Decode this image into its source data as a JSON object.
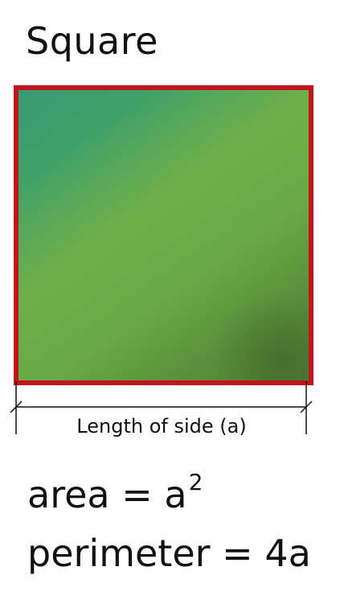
{
  "title": "Square",
  "colors": {
    "border": "#c0161b",
    "fill_top_left": "#399a72",
    "fill_middle": "#6fb04a",
    "fill_bottom_right": "#4f7f33"
  },
  "dimension": {
    "label": "Length of side (a)"
  },
  "formulas": {
    "area_lhs": "area = a",
    "area_exponent": "2",
    "perimeter": "perimeter = 4a"
  }
}
